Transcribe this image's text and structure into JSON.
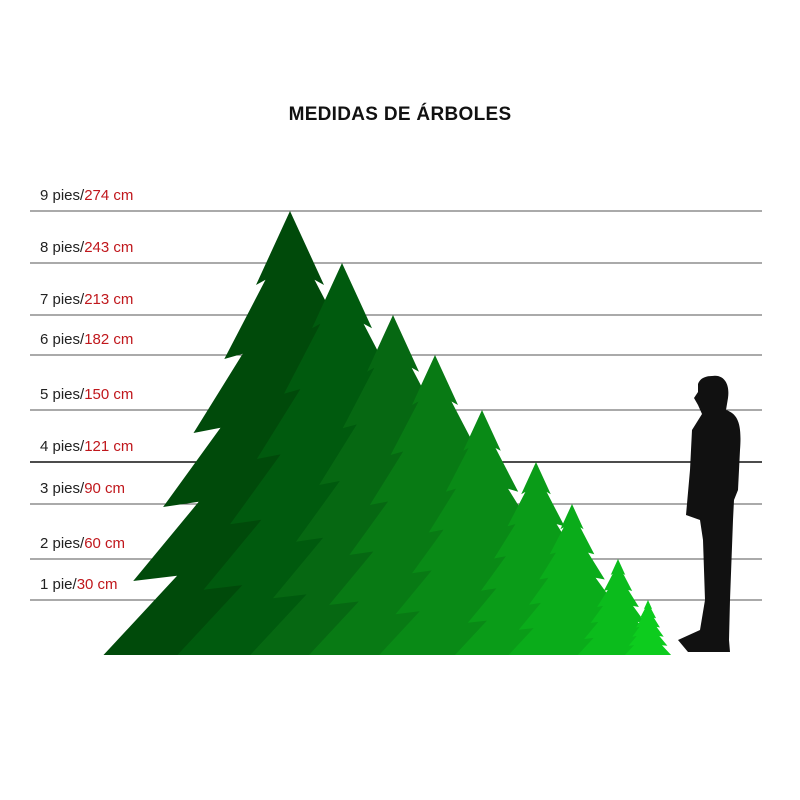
{
  "title": "MEDIDAS DE ÁRBOLES",
  "scale": [
    {
      "ft": "9 pies/",
      "cm": "274 cm"
    },
    {
      "ft": "8 pies/",
      "cm": "243 cm"
    },
    {
      "ft": "7 pies/",
      "cm": "213 cm"
    },
    {
      "ft": "6 pies/",
      "cm": "182 cm"
    },
    {
      "ft": "5 pies/",
      "cm": "150 cm"
    },
    {
      "ft": "4 pies/",
      "cm": "121 cm"
    },
    {
      "ft": "3 pies/",
      "cm": "90 cm"
    },
    {
      "ft": "2 pies/",
      "cm": "60 cm"
    },
    {
      "ft": "1 pie/",
      "cm": "30 cm"
    }
  ],
  "trees": [
    {
      "height_ft": 9,
      "color": "#004a0a"
    },
    {
      "height_ft": 8,
      "color": "#005a0e"
    },
    {
      "height_ft": 7,
      "color": "#066812"
    },
    {
      "height_ft": 6,
      "color": "#087a14"
    },
    {
      "height_ft": 5,
      "color": "#098a16"
    },
    {
      "height_ft": 4,
      "color": "#0a9c18"
    },
    {
      "height_ft": 3,
      "color": "#0aac1a"
    },
    {
      "height_ft": 2,
      "color": "#0bbc1c"
    },
    {
      "height_ft": 1,
      "color": "#0dcc1e"
    }
  ],
  "person": {
    "icon": "person-silhouette-icon",
    "color": "#111111"
  }
}
